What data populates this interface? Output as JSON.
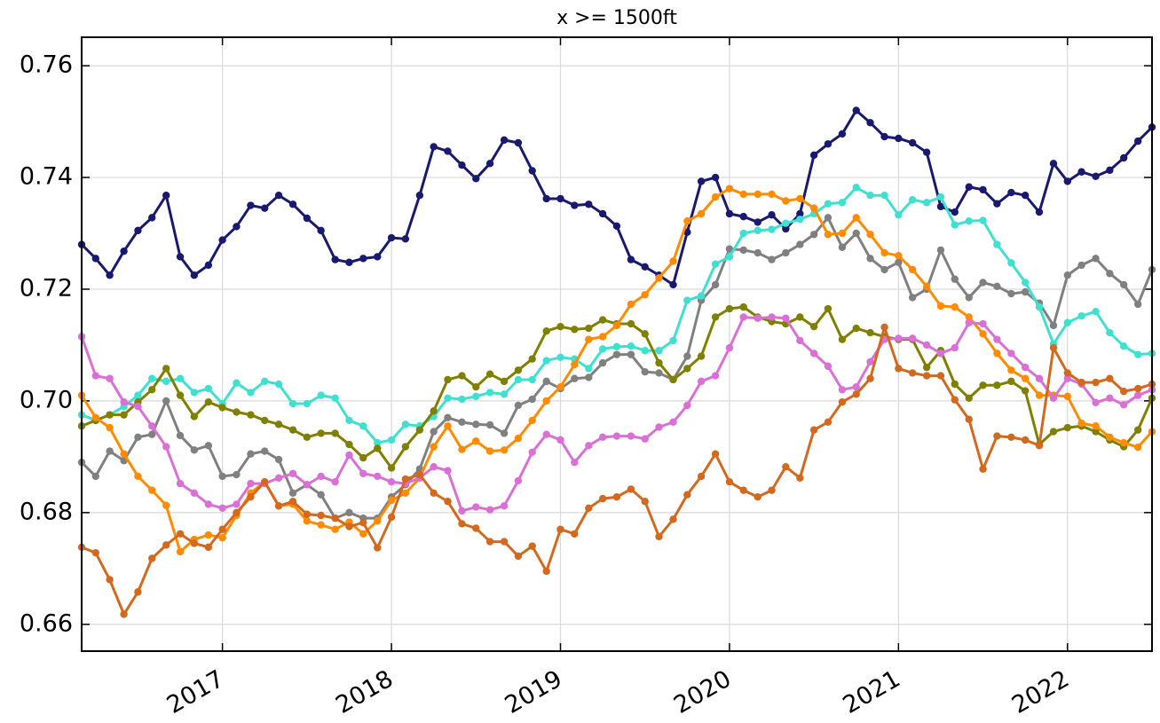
{
  "chart_data": {
    "type": "line",
    "title": "x >= 1500ft",
    "x": [
      2016.167,
      2016.25,
      2016.333,
      2016.417,
      2016.5,
      2016.583,
      2016.667,
      2016.75,
      2016.833,
      2016.917,
      2017,
      2017.083,
      2017.167,
      2017.25,
      2017.333,
      2017.417,
      2017.5,
      2017.583,
      2017.667,
      2017.75,
      2017.833,
      2017.917,
      2018,
      2018.083,
      2018.167,
      2018.25,
      2018.333,
      2018.417,
      2018.5,
      2018.583,
      2018.667,
      2018.75,
      2018.833,
      2018.917,
      2019,
      2019.083,
      2019.167,
      2019.25,
      2019.333,
      2019.417,
      2019.5,
      2019.583,
      2019.667,
      2019.75,
      2019.833,
      2019.917,
      2020,
      2020.083,
      2020.167,
      2020.25,
      2020.333,
      2020.417,
      2020.5,
      2020.583,
      2020.667,
      2020.75,
      2020.833,
      2020.917,
      2021,
      2021.083,
      2021.167,
      2021.25,
      2021.333,
      2021.417,
      2021.5,
      2021.583,
      2021.667,
      2021.75,
      2021.833,
      2021.917,
      2022,
      2022.083,
      2022.167,
      2022.25,
      2022.333,
      2022.417,
      2022.5
    ],
    "series": [
      {
        "color": "#191970",
        "values": [
          0.728,
          0.7255,
          0.7225,
          0.7268,
          0.7305,
          0.7328,
          0.7368,
          0.7258,
          0.7225,
          0.7243,
          0.7288,
          0.7312,
          0.735,
          0.7345,
          0.7368,
          0.7352,
          0.7327,
          0.7305,
          0.7253,
          0.7248,
          0.7255,
          0.7258,
          0.7292,
          0.729,
          0.7368,
          0.7455,
          0.7447,
          0.7422,
          0.7398,
          0.7425,
          0.7467,
          0.7462,
          0.7412,
          0.7362,
          0.7362,
          0.735,
          0.7352,
          0.7335,
          0.7313,
          0.7253,
          0.724,
          0.7225,
          0.7208,
          0.7302,
          0.7393,
          0.74,
          0.7335,
          0.733,
          0.732,
          0.7333,
          0.7308,
          0.7335,
          0.744,
          0.746,
          0.7478,
          0.752,
          0.7498,
          0.7473,
          0.747,
          0.7462,
          0.7445,
          0.7348,
          0.7338,
          0.7383,
          0.7378,
          0.7353,
          0.7373,
          0.7368,
          0.7338,
          0.7425,
          0.7393,
          0.741,
          0.7402,
          0.7413,
          0.7435,
          0.7465,
          0.749
        ]
      },
      {
        "color": "#808080",
        "values": [
          0.689,
          0.6865,
          0.691,
          0.6893,
          0.6935,
          0.694,
          0.7,
          0.6938,
          0.6912,
          0.692,
          0.6865,
          0.6868,
          0.6905,
          0.691,
          0.6895,
          0.6835,
          0.685,
          0.6832,
          0.679,
          0.68,
          0.679,
          0.679,
          0.6828,
          0.685,
          0.6878,
          0.6945,
          0.697,
          0.6962,
          0.6958,
          0.6957,
          0.6942,
          0.6992,
          0.7003,
          0.7035,
          0.7022,
          0.704,
          0.7042,
          0.7068,
          0.7083,
          0.7083,
          0.7052,
          0.705,
          0.7038,
          0.708,
          0.718,
          0.7208,
          0.7272,
          0.727,
          0.7265,
          0.7253,
          0.7265,
          0.728,
          0.7298,
          0.7328,
          0.7275,
          0.73,
          0.7255,
          0.7235,
          0.7248,
          0.7185,
          0.72,
          0.727,
          0.7218,
          0.7185,
          0.7212,
          0.7205,
          0.7192,
          0.7195,
          0.7175,
          0.7135,
          0.7225,
          0.7243,
          0.7255,
          0.7228,
          0.7208,
          0.7173,
          0.7235
        ]
      },
      {
        "color": "#40e0d0",
        "values": [
          0.6975,
          0.6965,
          0.6975,
          0.699,
          0.701,
          0.704,
          0.7035,
          0.704,
          0.7015,
          0.7022,
          0.6995,
          0.7032,
          0.7015,
          0.7035,
          0.703,
          0.6995,
          0.6995,
          0.701,
          0.7005,
          0.6965,
          0.6955,
          0.6925,
          0.693,
          0.6958,
          0.6955,
          0.6972,
          0.7005,
          0.7003,
          0.7008,
          0.7015,
          0.7012,
          0.7038,
          0.7038,
          0.7072,
          0.7078,
          0.7075,
          0.7058,
          0.7093,
          0.7097,
          0.7098,
          0.709,
          0.709,
          0.7108,
          0.718,
          0.7188,
          0.7245,
          0.7258,
          0.73,
          0.7305,
          0.7307,
          0.7318,
          0.7325,
          0.7335,
          0.7353,
          0.7355,
          0.7382,
          0.7368,
          0.7368,
          0.7333,
          0.736,
          0.7355,
          0.7365,
          0.7315,
          0.7322,
          0.7323,
          0.728,
          0.7247,
          0.7212,
          0.7168,
          0.7102,
          0.714,
          0.7152,
          0.716,
          0.7122,
          0.7098,
          0.7083,
          0.7085
        ]
      },
      {
        "color": "#808000",
        "values": [
          0.6955,
          0.6965,
          0.6975,
          0.6975,
          0.6998,
          0.702,
          0.7058,
          0.701,
          0.6972,
          0.6998,
          0.6988,
          0.698,
          0.6975,
          0.6965,
          0.6958,
          0.6948,
          0.6935,
          0.6942,
          0.6942,
          0.6922,
          0.6898,
          0.6915,
          0.688,
          0.6918,
          0.6948,
          0.6982,
          0.7038,
          0.7045,
          0.7025,
          0.7048,
          0.7035,
          0.7055,
          0.7075,
          0.7125,
          0.7133,
          0.7128,
          0.713,
          0.7145,
          0.7138,
          0.7138,
          0.712,
          0.7068,
          0.7038,
          0.7058,
          0.708,
          0.715,
          0.7165,
          0.7168,
          0.715,
          0.7142,
          0.7138,
          0.715,
          0.7133,
          0.7165,
          0.711,
          0.713,
          0.7122,
          0.7115,
          0.711,
          0.711,
          0.706,
          0.709,
          0.703,
          0.7005,
          0.7028,
          0.7028,
          0.7035,
          0.7018,
          0.6922,
          0.6945,
          0.6952,
          0.6955,
          0.6945,
          0.693,
          0.6918,
          0.6948,
          0.7005
        ]
      },
      {
        "color": "#ff8c00",
        "values": [
          0.701,
          0.697,
          0.6952,
          0.6905,
          0.6865,
          0.684,
          0.6813,
          0.673,
          0.6752,
          0.676,
          0.6755,
          0.6795,
          0.6835,
          0.6855,
          0.6812,
          0.6815,
          0.6785,
          0.6778,
          0.677,
          0.6783,
          0.6762,
          0.6785,
          0.6822,
          0.6835,
          0.6862,
          0.6918,
          0.6955,
          0.6913,
          0.6928,
          0.691,
          0.6912,
          0.6933,
          0.6965,
          0.7,
          0.7025,
          0.7065,
          0.711,
          0.7115,
          0.7135,
          0.7173,
          0.719,
          0.722,
          0.725,
          0.7322,
          0.7335,
          0.7365,
          0.738,
          0.737,
          0.737,
          0.737,
          0.7358,
          0.7362,
          0.7345,
          0.7298,
          0.73,
          0.7328,
          0.7298,
          0.7265,
          0.726,
          0.7235,
          0.7205,
          0.717,
          0.7168,
          0.715,
          0.712,
          0.7085,
          0.7055,
          0.704,
          0.701,
          0.701,
          0.7008,
          0.696,
          0.6955,
          0.6935,
          0.6925,
          0.6917,
          0.6945
        ]
      },
      {
        "color": "#da70d6",
        "values": [
          0.7115,
          0.7045,
          0.704,
          0.6998,
          0.699,
          0.6955,
          0.6918,
          0.6852,
          0.6835,
          0.6815,
          0.6808,
          0.6815,
          0.6852,
          0.6852,
          0.6862,
          0.687,
          0.685,
          0.6865,
          0.6855,
          0.6903,
          0.687,
          0.6865,
          0.6855,
          0.6852,
          0.6862,
          0.6882,
          0.6875,
          0.6803,
          0.681,
          0.6805,
          0.6812,
          0.6857,
          0.6908,
          0.694,
          0.693,
          0.689,
          0.692,
          0.6935,
          0.6937,
          0.6937,
          0.6932,
          0.6953,
          0.6962,
          0.6992,
          0.7035,
          0.7045,
          0.7095,
          0.715,
          0.7148,
          0.715,
          0.7148,
          0.7108,
          0.7085,
          0.7062,
          0.702,
          0.7025,
          0.707,
          0.711,
          0.7112,
          0.7112,
          0.71,
          0.7085,
          0.7095,
          0.714,
          0.7138,
          0.711,
          0.7085,
          0.706,
          0.704,
          0.7005,
          0.704,
          0.703,
          0.6997,
          0.7005,
          0.6993,
          0.701,
          0.702
        ]
      },
      {
        "color": "#d2691e",
        "values": [
          0.6738,
          0.6728,
          0.668,
          0.6618,
          0.6658,
          0.6718,
          0.6742,
          0.6762,
          0.6745,
          0.6738,
          0.677,
          0.68,
          0.6828,
          0.6855,
          0.6812,
          0.682,
          0.6797,
          0.6795,
          0.679,
          0.6775,
          0.6782,
          0.6737,
          0.6792,
          0.686,
          0.6868,
          0.6835,
          0.682,
          0.678,
          0.6772,
          0.6748,
          0.6748,
          0.6722,
          0.674,
          0.6695,
          0.677,
          0.6762,
          0.6808,
          0.6825,
          0.6828,
          0.6842,
          0.682,
          0.6757,
          0.6788,
          0.6832,
          0.6865,
          0.6905,
          0.6855,
          0.684,
          0.6828,
          0.684,
          0.6882,
          0.6862,
          0.6948,
          0.6962,
          0.6998,
          0.7012,
          0.704,
          0.7132,
          0.7058,
          0.705,
          0.7045,
          0.7045,
          0.7002,
          0.6967,
          0.6878,
          0.6937,
          0.6935,
          0.693,
          0.692,
          0.7095,
          0.705,
          0.7033,
          0.7033,
          0.704,
          0.7017,
          0.7022,
          0.703
        ]
      }
    ],
    "xlim": [
      2016.167,
      2022.5
    ],
    "xticks": [
      2017,
      2018,
      2019,
      2020,
      2021,
      2022
    ],
    "ylim": [
      0.6552,
      0.7651
    ],
    "yticks": [
      0.66,
      0.68,
      {
        "value": 0.7,
        "label": "0.70"
      },
      0.72,
      0.74,
      0.76
    ],
    "grid": true
  }
}
